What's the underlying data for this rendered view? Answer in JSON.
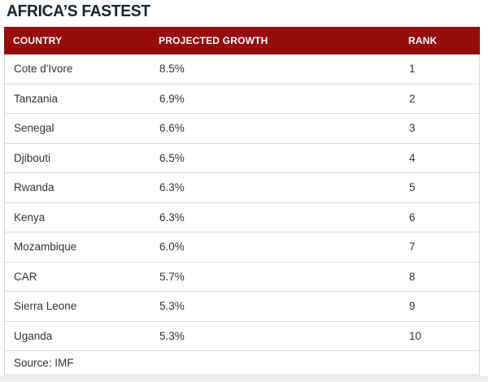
{
  "title": "AFRICA’S FASTEST",
  "table": {
    "headers": [
      "COUNTRY",
      "PROJECTED GROWTH",
      "RANK"
    ],
    "rows": [
      {
        "country": "Cote d'Ivore",
        "growth": "8.5%",
        "rank": "1"
      },
      {
        "country": "Tanzania",
        "growth": "6.9%",
        "rank": "2"
      },
      {
        "country": "Senegal",
        "growth": "6.6%",
        "rank": "3"
      },
      {
        "country": "Djibouti",
        "growth": "6.5%",
        "rank": "4"
      },
      {
        "country": "Rwanda",
        "growth": "6.3%",
        "rank": "5"
      },
      {
        "country": "Kenya",
        "growth": "6.3%",
        "rank": "6"
      },
      {
        "country": "Mozambique",
        "growth": "6.0%",
        "rank": "7"
      },
      {
        "country": "CAR",
        "growth": "5.7%",
        "rank": "8"
      },
      {
        "country": "Sierra Leone",
        "growth": "5.3%",
        "rank": "9"
      },
      {
        "country": "Uganda",
        "growth": "5.3%",
        "rank": "10"
      }
    ],
    "source": "Source: IMF"
  },
  "colors": {
    "header_bg": "#970c0c",
    "header_text": "#ffffff",
    "title_text": "#17242e",
    "body_text": "#333333",
    "row_border": "#dcdcdc"
  },
  "chart_data": {
    "type": "table",
    "title": "AFRICA’S FASTEST",
    "columns": [
      "COUNTRY",
      "PROJECTED GROWTH",
      "RANK"
    ],
    "rows": [
      [
        "Cote d'Ivore",
        8.5,
        1
      ],
      [
        "Tanzania",
        6.9,
        2
      ],
      [
        "Senegal",
        6.6,
        3
      ],
      [
        "Djibouti",
        6.5,
        4
      ],
      [
        "Rwanda",
        6.3,
        5
      ],
      [
        "Kenya",
        6.3,
        6
      ],
      [
        "Mozambique",
        6.0,
        7
      ],
      [
        "CAR",
        5.7,
        8
      ],
      [
        "Sierra Leone",
        5.3,
        9
      ],
      [
        "Uganda",
        5.3,
        10
      ]
    ],
    "units": "percent projected growth",
    "source": "Source: IMF"
  }
}
